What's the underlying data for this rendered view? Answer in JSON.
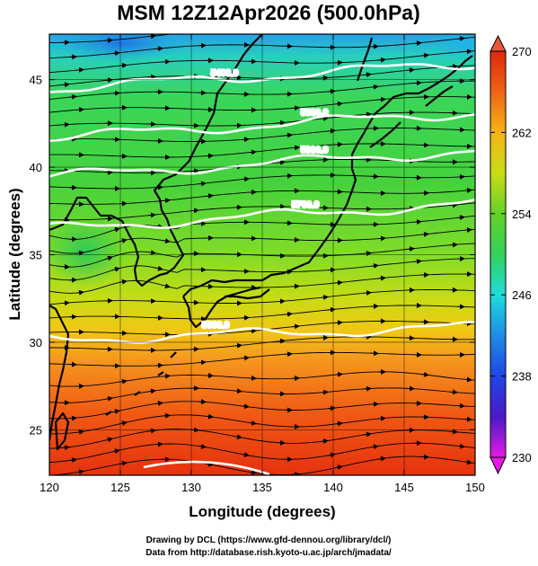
{
  "title": "MSM 12Z12Apr2026 (500.0hPa)",
  "x_axis": {
    "label": "Longitude (degrees)",
    "range": [
      120,
      150
    ],
    "ticks": [
      120,
      125,
      130,
      135,
      140,
      145,
      150
    ]
  },
  "y_axis": {
    "label": "Latitude  (degrees)",
    "range": [
      22.4,
      47.6
    ],
    "ticks": [
      25,
      30,
      35,
      40,
      45
    ]
  },
  "colorbar": {
    "ticks": [
      230,
      238,
      246,
      254,
      262,
      270
    ],
    "range": [
      230,
      270
    ],
    "stops": [
      "#e619e6",
      "#4b19c8",
      "#1e46e6",
      "#1eaadc",
      "#23dcaa",
      "#3cd23c",
      "#8cdc23",
      "#dcdc14",
      "#f5aa14",
      "#f05a14",
      "#dc280f"
    ]
  },
  "contours": [
    {
      "label": "5400.0",
      "lat": 45.2
    },
    {
      "label": "5600.0",
      "lat": 42.4
    },
    {
      "label": "5600.0",
      "lat": 40.2
    },
    {
      "label": "5700.0",
      "lat": 37.2
    },
    {
      "label": "5800.0",
      "lat": 30.5
    }
  ],
  "credits": {
    "line1": "Drawing by DCL (https://www.gfd-dennou.org/library/dcl/)",
    "line2": "Data from http://database.rish.kyoto-u.ac.jp/arch/jmadata/"
  }
}
